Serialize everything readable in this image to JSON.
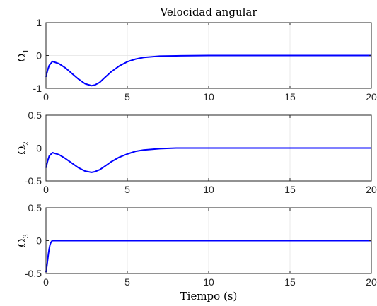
{
  "chart_data": [
    {
      "type": "line",
      "title": "Velocidad angular",
      "xlabel": "",
      "ylabel": {
        "base": "Ω",
        "sub": "1"
      },
      "xlim": [
        0,
        20
      ],
      "ylim": [
        -1,
        1
      ],
      "xticks": [
        0,
        5,
        10,
        15,
        20
      ],
      "yticks": [
        -1,
        0,
        1
      ],
      "grid": true,
      "series": [
        {
          "color": "#0000ff",
          "x": [
            0,
            0.1,
            0.2,
            0.4,
            0.8,
            1.2,
            1.6,
            2.0,
            2.4,
            2.8,
            3.0,
            3.3,
            3.6,
            4.0,
            4.5,
            5.0,
            5.5,
            6.0,
            7.0,
            8.0,
            10.0,
            12.0,
            15.0,
            20.0
          ],
          "y": [
            -0.65,
            -0.45,
            -0.3,
            -0.18,
            -0.25,
            -0.38,
            -0.55,
            -0.72,
            -0.86,
            -0.92,
            -0.9,
            -0.82,
            -0.68,
            -0.5,
            -0.32,
            -0.19,
            -0.11,
            -0.06,
            -0.02,
            -0.01,
            0,
            0,
            0,
            0
          ]
        }
      ]
    },
    {
      "type": "line",
      "title": "",
      "xlabel": "",
      "ylabel": {
        "base": "Ω",
        "sub": "2"
      },
      "xlim": [
        0,
        20
      ],
      "ylim": [
        -0.5,
        0.5
      ],
      "xticks": [
        0,
        5,
        10,
        15,
        20
      ],
      "yticks": [
        -0.5,
        0,
        0.5
      ],
      "grid": true,
      "series": [
        {
          "color": "#0000ff",
          "x": [
            0,
            0.1,
            0.2,
            0.4,
            0.8,
            1.2,
            1.6,
            2.0,
            2.4,
            2.8,
            3.0,
            3.3,
            3.6,
            4.0,
            4.5,
            5.0,
            5.5,
            6.0,
            7.0,
            8.0,
            10.0,
            12.0,
            15.0,
            20.0
          ],
          "y": [
            -0.3,
            -0.2,
            -0.12,
            -0.07,
            -0.1,
            -0.16,
            -0.23,
            -0.3,
            -0.35,
            -0.37,
            -0.36,
            -0.33,
            -0.28,
            -0.21,
            -0.14,
            -0.09,
            -0.05,
            -0.03,
            -0.01,
            0,
            0,
            0,
            0,
            0
          ]
        }
      ]
    },
    {
      "type": "line",
      "title": "",
      "xlabel": "Tiempo (s)",
      "ylabel": {
        "base": "Ω",
        "sub": "3"
      },
      "xlim": [
        0,
        20
      ],
      "ylim": [
        -0.5,
        0.5
      ],
      "xticks": [
        0,
        5,
        10,
        15,
        20
      ],
      "yticks": [
        -0.5,
        0,
        0.5
      ],
      "grid": true,
      "series": [
        {
          "color": "#0000ff",
          "x": [
            0,
            0.05,
            0.1,
            0.15,
            0.2,
            0.25,
            0.3,
            0.35,
            0.4,
            0.5,
            1.0,
            5.0,
            10.0,
            15.0,
            20.0
          ],
          "y": [
            -0.48,
            -0.4,
            -0.3,
            -0.2,
            -0.12,
            -0.06,
            -0.03,
            -0.01,
            0,
            0,
            0,
            0,
            0,
            0,
            0
          ]
        }
      ]
    }
  ]
}
